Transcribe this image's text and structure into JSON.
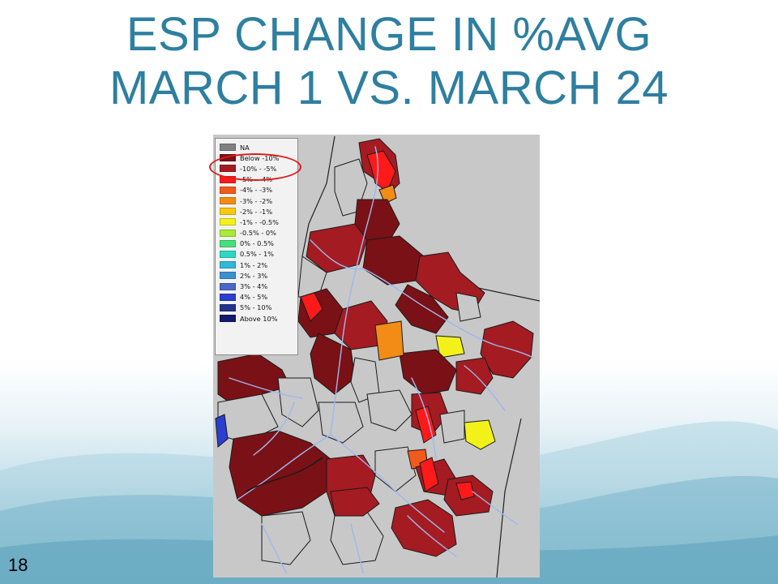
{
  "slide": {
    "title_line1": "ESP CHANGE IN %AVG",
    "title_line2": "MARCH 1 VS. MARCH 24",
    "number": "18"
  },
  "legend": {
    "items": [
      {
        "label": "NA",
        "color": "#808080"
      },
      {
        "label": "Below -10%",
        "color": "#7a1116"
      },
      {
        "label": "-10% - -5%",
        "color": "#a51b22"
      },
      {
        "label": "-5% - -4%",
        "color": "#ff1a1a"
      },
      {
        "label": "-4% - -3%",
        "color": "#f25a1c"
      },
      {
        "label": "-3% - -2%",
        "color": "#f28c16"
      },
      {
        "label": "-2% - -1%",
        "color": "#f7c911"
      },
      {
        "label": "-1% - -0.5%",
        "color": "#f2f21a"
      },
      {
        "label": "-0.5% - 0%",
        "color": "#a8ea35"
      },
      {
        "label": "0% - 0.5%",
        "color": "#45e07a"
      },
      {
        "label": "0.5% - 1%",
        "color": "#2ed8c0"
      },
      {
        "label": "1% - 2%",
        "color": "#30b8d8"
      },
      {
        "label": "2% - 3%",
        "color": "#3a8fd0"
      },
      {
        "label": "3% - 4%",
        "color": "#4a66c6"
      },
      {
        "label": "4% - 5%",
        "color": "#2a3fcf"
      },
      {
        "label": "5% - 10%",
        "color": "#23338a"
      },
      {
        "label": "Above 10%",
        "color": "#121a6b"
      }
    ],
    "highlighted": [
      "Below -10%",
      "-10% - -5%"
    ]
  },
  "colors": {
    "title": "#2e7fa0",
    "map_background": "#c8c8c8",
    "river": "#9db7f0",
    "basin_border": "#1a1a1a",
    "highlight": "#e01b1b"
  }
}
